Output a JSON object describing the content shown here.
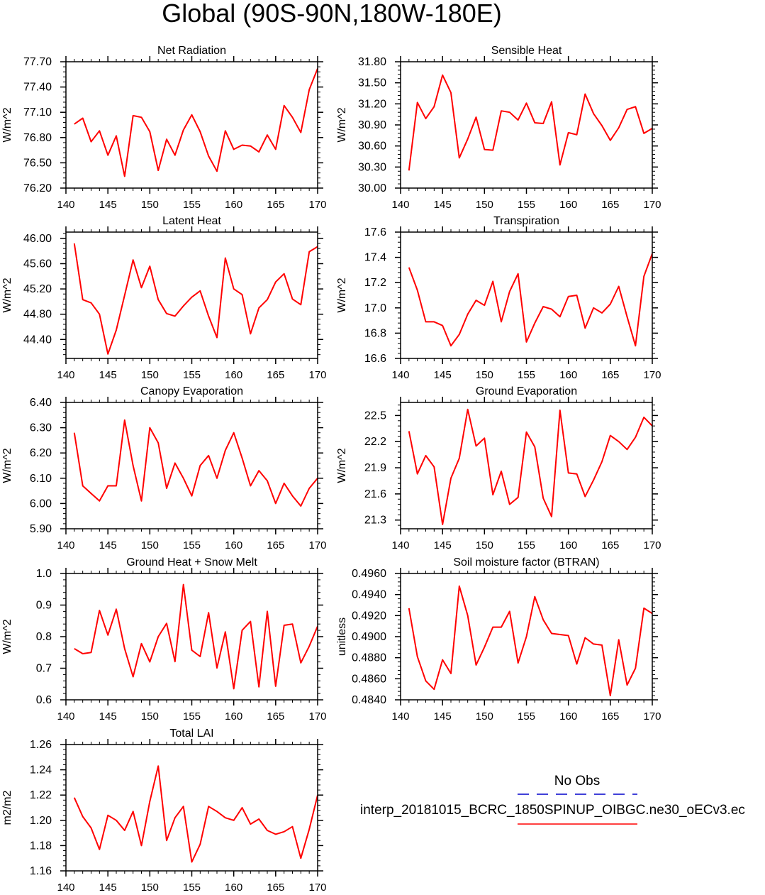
{
  "figure": {
    "title": "Global (90S-90N,180W-180E)",
    "legend": {
      "entries": [
        {
          "label": "No Obs",
          "color": "#0000cc",
          "style": "dashed"
        },
        {
          "label": "interp_20181015_BCRC_1850SPINUP_OIBGC.ne30_oECv3.ec",
          "color": "#ff0000",
          "style": "solid"
        }
      ]
    }
  },
  "chart_data": [
    {
      "type": "line",
      "title": "Net Radiation",
      "ylabel": "W/m^2",
      "xlabel": "",
      "xlim": [
        140,
        170
      ],
      "ylim": [
        76.2,
        77.7
      ],
      "xticks": [
        "140",
        "145",
        "150",
        "155",
        "160",
        "165",
        "170"
      ],
      "yticks": [
        "76.20",
        "76.50",
        "76.80",
        "77.10",
        "77.40",
        "77.70"
      ],
      "x": [
        141,
        142,
        143,
        144,
        145,
        146,
        147,
        148,
        149,
        150,
        151,
        152,
        153,
        154,
        155,
        156,
        157,
        158,
        159,
        160,
        161,
        162,
        163,
        164,
        165,
        166,
        167,
        168,
        169,
        170
      ],
      "series": [
        {
          "color": "#ff0000",
          "values": [
            76.96,
            77.03,
            76.75,
            76.88,
            76.59,
            76.82,
            76.34,
            77.06,
            77.04,
            76.87,
            76.41,
            76.78,
            76.59,
            76.89,
            77.07,
            76.87,
            76.58,
            76.4,
            76.88,
            76.66,
            76.71,
            76.7,
            76.63,
            76.83,
            76.66,
            77.18,
            77.04,
            76.86,
            77.37,
            77.62
          ]
        }
      ]
    },
    {
      "type": "line",
      "title": "Sensible Heat",
      "ylabel": "W/m^2",
      "xlabel": "",
      "xlim": [
        140,
        170
      ],
      "ylim": [
        30.0,
        31.8
      ],
      "xticks": [
        "140",
        "145",
        "150",
        "155",
        "160",
        "165",
        "170"
      ],
      "yticks": [
        "30.00",
        "30.30",
        "30.60",
        "30.90",
        "31.20",
        "31.50",
        "31.80"
      ],
      "x": [
        141,
        142,
        143,
        144,
        145,
        146,
        147,
        148,
        149,
        150,
        151,
        152,
        153,
        154,
        155,
        156,
        157,
        158,
        159,
        160,
        161,
        162,
        163,
        164,
        165,
        166,
        167,
        168,
        169,
        170
      ],
      "series": [
        {
          "color": "#ff0000",
          "values": [
            30.25,
            31.22,
            30.99,
            31.16,
            31.61,
            31.36,
            30.43,
            30.7,
            31.01,
            30.55,
            30.54,
            31.1,
            31.08,
            30.97,
            31.21,
            30.93,
            30.92,
            31.23,
            30.33,
            30.79,
            30.76,
            31.34,
            31.06,
            30.89,
            30.68,
            30.86,
            31.12,
            31.16,
            30.78,
            30.85
          ]
        }
      ]
    },
    {
      "type": "line",
      "title": "Latent Heat",
      "ylabel": "W/m^2",
      "xlabel": "",
      "xlim": [
        140,
        170
      ],
      "ylim": [
        44.1,
        46.1
      ],
      "xticks": [
        "140",
        "145",
        "150",
        "155",
        "160",
        "165",
        "170"
      ],
      "yticks": [
        "44.40",
        "44.80",
        "45.20",
        "45.60",
        "46.00"
      ],
      "x": [
        141,
        142,
        143,
        144,
        145,
        146,
        147,
        148,
        149,
        150,
        151,
        152,
        153,
        154,
        155,
        156,
        157,
        158,
        159,
        160,
        161,
        162,
        163,
        164,
        165,
        166,
        167,
        168,
        169,
        170
      ],
      "series": [
        {
          "color": "#ff0000",
          "values": [
            45.92,
            45.03,
            44.98,
            44.8,
            44.17,
            44.55,
            45.1,
            45.66,
            45.22,
            45.56,
            45.03,
            44.81,
            44.77,
            44.93,
            45.07,
            45.17,
            44.77,
            44.43,
            45.69,
            45.2,
            45.11,
            44.49,
            44.9,
            45.03,
            45.31,
            45.44,
            45.04,
            44.95,
            45.79,
            45.87
          ]
        }
      ]
    },
    {
      "type": "line",
      "title": "Transpiration",
      "ylabel": "W/m^2",
      "xlabel": "",
      "xlim": [
        140,
        170
      ],
      "ylim": [
        16.6,
        17.6
      ],
      "xticks": [
        "140",
        "145",
        "150",
        "155",
        "160",
        "165",
        "170"
      ],
      "yticks": [
        "16.6",
        "16.8",
        "17.0",
        "17.2",
        "17.4",
        "17.6"
      ],
      "x": [
        141,
        142,
        143,
        144,
        145,
        146,
        147,
        148,
        149,
        150,
        151,
        152,
        153,
        154,
        155,
        156,
        157,
        158,
        159,
        160,
        161,
        162,
        163,
        164,
        165,
        166,
        167,
        168,
        169,
        170
      ],
      "series": [
        {
          "color": "#ff0000",
          "values": [
            17.32,
            17.14,
            16.89,
            16.89,
            16.86,
            16.7,
            16.79,
            16.95,
            17.06,
            17.02,
            17.21,
            16.89,
            17.13,
            17.27,
            16.73,
            16.88,
            17.01,
            16.99,
            16.93,
            17.09,
            17.1,
            16.84,
            17.0,
            16.96,
            17.03,
            17.17,
            16.93,
            16.7,
            17.25,
            17.43
          ]
        }
      ]
    },
    {
      "type": "line",
      "title": "Canopy Evaporation",
      "ylabel": "W/m^2",
      "xlabel": "",
      "xlim": [
        140,
        170
      ],
      "ylim": [
        5.9,
        6.4
      ],
      "xticks": [
        "140",
        "145",
        "150",
        "155",
        "160",
        "165",
        "170"
      ],
      "yticks": [
        "5.90",
        "6.00",
        "6.10",
        "6.20",
        "6.30",
        "6.40"
      ],
      "x": [
        141,
        142,
        143,
        144,
        145,
        146,
        147,
        148,
        149,
        150,
        151,
        152,
        153,
        154,
        155,
        156,
        157,
        158,
        159,
        160,
        161,
        162,
        163,
        164,
        165,
        166,
        167,
        168,
        169,
        170
      ],
      "series": [
        {
          "color": "#ff0000",
          "values": [
            6.28,
            6.07,
            6.04,
            6.01,
            6.07,
            6.07,
            6.33,
            6.15,
            6.01,
            6.3,
            6.24,
            6.06,
            6.16,
            6.1,
            6.03,
            6.15,
            6.19,
            6.1,
            6.21,
            6.28,
            6.18,
            6.07,
            6.13,
            6.09,
            6.0,
            6.08,
            6.03,
            5.99,
            6.06,
            6.1
          ]
        }
      ]
    },
    {
      "type": "line",
      "title": "Ground Evaporation",
      "ylabel": "W/m^2",
      "xlabel": "",
      "xlim": [
        140,
        170
      ],
      "ylim": [
        21.2,
        22.65
      ],
      "xticks": [
        "140",
        "145",
        "150",
        "155",
        "160",
        "165",
        "170"
      ],
      "yticks": [
        "21.3",
        "21.6",
        "21.9",
        "22.2",
        "22.5"
      ],
      "x": [
        141,
        142,
        143,
        144,
        145,
        146,
        147,
        148,
        149,
        150,
        151,
        152,
        153,
        154,
        155,
        156,
        157,
        158,
        159,
        160,
        161,
        162,
        163,
        164,
        165,
        166,
        167,
        168,
        169,
        170
      ],
      "series": [
        {
          "color": "#ff0000",
          "values": [
            22.32,
            21.83,
            22.04,
            21.91,
            21.25,
            21.78,
            22.01,
            22.57,
            22.15,
            22.24,
            21.59,
            21.86,
            21.48,
            21.56,
            22.31,
            22.14,
            21.55,
            21.34,
            22.56,
            21.84,
            21.83,
            21.57,
            21.76,
            21.97,
            22.27,
            22.2,
            22.11,
            22.25,
            22.48,
            22.38
          ]
        }
      ]
    },
    {
      "type": "line",
      "title": "Ground Heat + Snow Melt",
      "ylabel": "W/m^2",
      "xlabel": "",
      "xlim": [
        140,
        170
      ],
      "ylim": [
        0.6,
        1.0
      ],
      "xticks": [
        "140",
        "145",
        "150",
        "155",
        "160",
        "165",
        "170"
      ],
      "yticks": [
        "0.6",
        "0.7",
        "0.8",
        "0.9",
        "1.0"
      ],
      "x": [
        141,
        142,
        143,
        144,
        145,
        146,
        147,
        148,
        149,
        150,
        151,
        152,
        153,
        154,
        155,
        156,
        157,
        158,
        159,
        160,
        161,
        162,
        163,
        164,
        165,
        166,
        167,
        168,
        169,
        170
      ],
      "series": [
        {
          "color": "#ff0000",
          "values": [
            0.762,
            0.746,
            0.75,
            0.883,
            0.805,
            0.887,
            0.762,
            0.673,
            0.778,
            0.72,
            0.8,
            0.842,
            0.721,
            0.965,
            0.757,
            0.737,
            0.876,
            0.701,
            0.815,
            0.635,
            0.82,
            0.848,
            0.641,
            0.88,
            0.643,
            0.836,
            0.84,
            0.717,
            0.77,
            0.833
          ]
        }
      ]
    },
    {
      "type": "line",
      "title": "Soil moisture factor (BTRAN)",
      "ylabel": "unitless",
      "xlabel": "",
      "xlim": [
        140,
        170
      ],
      "ylim": [
        0.484,
        0.496
      ],
      "xticks": [
        "140",
        "145",
        "150",
        "155",
        "160",
        "165",
        "170"
      ],
      "yticks": [
        "0.4840",
        "0.4860",
        "0.4880",
        "0.4900",
        "0.4920",
        "0.4940",
        "0.4960"
      ],
      "x": [
        141,
        142,
        143,
        144,
        145,
        146,
        147,
        148,
        149,
        150,
        151,
        152,
        153,
        154,
        155,
        156,
        157,
        158,
        159,
        160,
        161,
        162,
        163,
        164,
        165,
        166,
        167,
        168,
        169,
        170
      ],
      "series": [
        {
          "color": "#ff0000",
          "values": [
            0.4927,
            0.4881,
            0.4858,
            0.485,
            0.4878,
            0.4865,
            0.4948,
            0.492,
            0.4873,
            0.489,
            0.4909,
            0.4909,
            0.4924,
            0.4875,
            0.49,
            0.4938,
            0.4916,
            0.4903,
            0.4902,
            0.4901,
            0.4874,
            0.4899,
            0.4893,
            0.4892,
            0.4844,
            0.4897,
            0.4854,
            0.487,
            0.4927,
            0.4922
          ]
        }
      ]
    },
    {
      "type": "line",
      "title": "Total LAI",
      "ylabel": "m2/m2",
      "xlabel": "",
      "xlim": [
        140,
        170
      ],
      "ylim": [
        1.16,
        1.26
      ],
      "xticks": [
        "140",
        "145",
        "150",
        "155",
        "160",
        "165",
        "170"
      ],
      "yticks": [
        "1.16",
        "1.18",
        "1.20",
        "1.22",
        "1.24",
        "1.26"
      ],
      "x": [
        141,
        142,
        143,
        144,
        145,
        146,
        147,
        148,
        149,
        150,
        151,
        152,
        153,
        154,
        155,
        156,
        157,
        158,
        159,
        160,
        161,
        162,
        163,
        164,
        165,
        166,
        167,
        168,
        169,
        170
      ],
      "series": [
        {
          "color": "#ff0000",
          "values": [
            1.218,
            1.203,
            1.194,
            1.177,
            1.204,
            1.2,
            1.192,
            1.207,
            1.18,
            1.215,
            1.243,
            1.184,
            1.202,
            1.211,
            1.167,
            1.181,
            1.211,
            1.207,
            1.202,
            1.2,
            1.21,
            1.197,
            1.201,
            1.192,
            1.189,
            1.191,
            1.195,
            1.17,
            1.193,
            1.22
          ]
        }
      ]
    }
  ]
}
